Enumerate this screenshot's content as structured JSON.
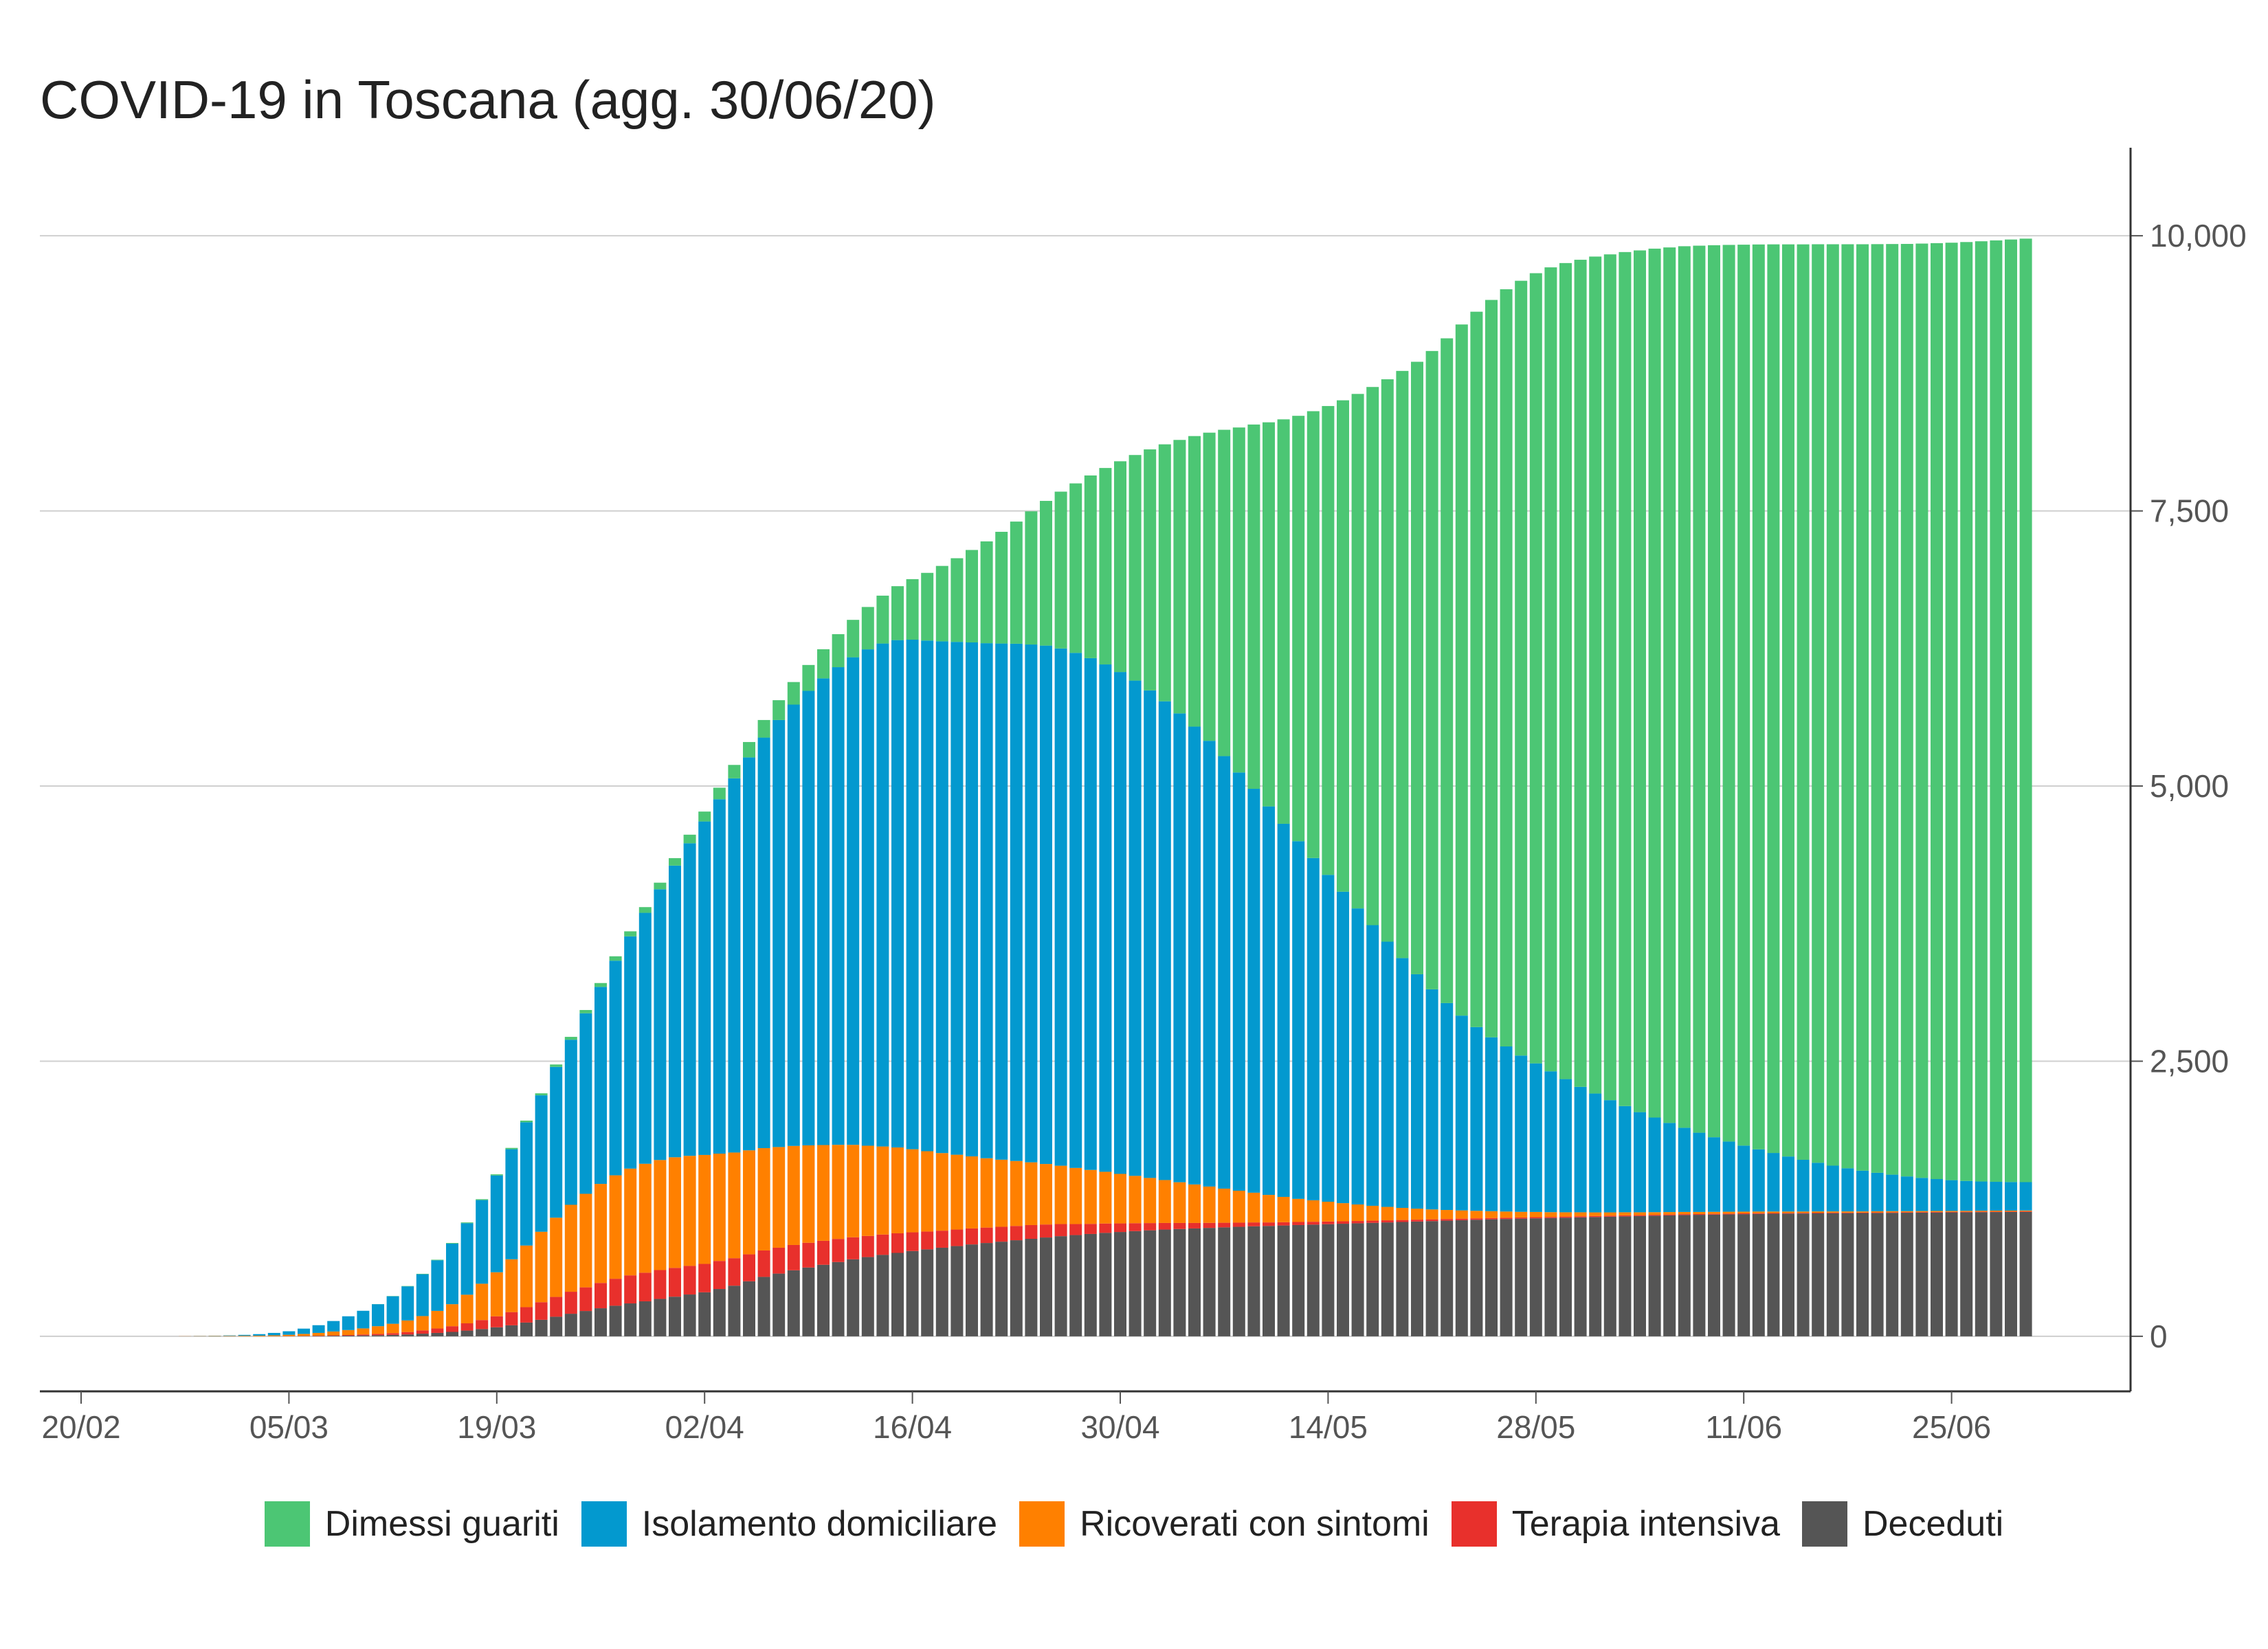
{
  "chart_data": {
    "type": "bar",
    "stacked": true,
    "title": "COVID-19 in Toscana (agg. 30/06/20)",
    "xlabel": "",
    "ylabel": "",
    "x_start": "2020-02-20",
    "x_end": "2020-06-30",
    "x_tick_labels": [
      "20/02",
      "05/03",
      "19/03",
      "02/04",
      "16/04",
      "30/04",
      "14/05",
      "28/05",
      "11/06",
      "25/06"
    ],
    "y_ticks": [
      0,
      2500,
      5000,
      7500,
      10000
    ],
    "y_tick_labels": [
      "0",
      "2,500",
      "5,000",
      "7,500",
      "10,000"
    ],
    "ylim": [
      -500,
      10800
    ],
    "y_axis_position": "right",
    "grid": "horizontal",
    "legend_position": "bottom",
    "series": [
      {
        "name": "Deceduti",
        "color": "#555555",
        "values": [
          0,
          0,
          0,
          0,
          0,
          0,
          0,
          0,
          0,
          0,
          0,
          0,
          0,
          1,
          1,
          2,
          3,
          5,
          6,
          8,
          10,
          13,
          17,
          24,
          31,
          40,
          52,
          66,
          82,
          100,
          125,
          150,
          178,
          205,
          230,
          255,
          278,
          299,
          318,
          340,
          360,
          380,
          400,
          430,
          460,
          500,
          540,
          570,
          600,
          625,
          650,
          675,
          700,
          720,
          740,
          758,
          775,
          790,
          805,
          820,
          835,
          848,
          860,
          873,
          886,
          898,
          910,
          920,
          930,
          940,
          948,
          956,
          963,
          970,
          975,
          980,
          985,
          990,
          995,
          1000,
          1003,
          1007,
          1011,
          1015,
          1019,
          1023,
          1027,
          1031,
          1035,
          1039,
          1043,
          1047,
          1051,
          1055,
          1059,
          1063,
          1066,
          1069,
          1072,
          1075,
          1078,
          1081,
          1084,
          1087,
          1090,
          1093,
          1096,
          1099,
          1102,
          1104,
          1106,
          1108,
          1110,
          1112,
          1114,
          1115,
          1116,
          1117,
          1118,
          1119,
          1120,
          1121,
          1122,
          1123,
          1124,
          1125,
          1126,
          1127,
          1128,
          1129,
          1130,
          1131
        ]
      },
      {
        "name": "Terapia intensiva",
        "color": "#e8302c",
        "values": [
          0,
          0,
          0,
          0,
          0,
          0,
          0,
          0,
          0,
          0,
          0,
          0,
          0,
          0,
          1,
          2,
          3,
          4,
          6,
          9,
          12,
          16,
          22,
          30,
          40,
          52,
          66,
          82,
          100,
          120,
          140,
          160,
          180,
          200,
          215,
          230,
          245,
          255,
          260,
          262,
          262,
          260,
          258,
          255,
          250,
          245,
          240,
          235,
          230,
          225,
          218,
          210,
          200,
          192,
          185,
          178,
          170,
          162,
          155,
          150,
          145,
          140,
          135,
          130,
          125,
          118,
          110,
          100,
          92,
          85,
          78,
          72,
          66,
          60,
          55,
          50,
          46,
          42,
          38,
          35,
          32,
          30,
          28,
          26,
          24,
          22,
          21,
          20,
          19,
          18,
          17,
          16,
          15,
          14,
          13,
          12,
          12,
          11,
          11,
          10,
          10,
          10,
          9,
          9,
          9,
          8,
          8,
          8,
          8,
          7,
          7,
          7,
          7,
          7,
          6,
          6,
          6,
          6,
          6,
          5,
          5,
          5,
          5,
          5,
          5,
          5,
          5,
          5,
          5,
          5,
          5,
          5
        ]
      },
      {
        "name": "Ricoverati con sintomi",
        "color": "#ff8000",
        "values": [
          0,
          0,
          0,
          0,
          0,
          0,
          0,
          1,
          2,
          3,
          4,
          5,
          6,
          8,
          12,
          18,
          25,
          35,
          45,
          55,
          70,
          85,
          105,
          130,
          160,
          200,
          260,
          330,
          400,
          480,
          560,
          640,
          720,
          790,
          850,
          900,
          940,
          970,
          990,
          1000,
          1005,
          1000,
          990,
          975,
          960,
          945,
          930,
          915,
          900,
          885,
          870,
          855,
          840,
          820,
          800,
          780,
          755,
          730,
          705,
          680,
          655,
          630,
          610,
          590,
          570,
          550,
          530,
          510,
          490,
          470,
          450,
          430,
          410,
          390,
          370,
          350,
          330,
          310,
          290,
          270,
          250,
          230,
          210,
          195,
          180,
          165,
          150,
          135,
          122,
          110,
          100,
          90,
          82,
          75,
          68,
          62,
          56,
          51,
          47,
          43,
          39,
          36,
          33,
          30,
          28,
          26,
          24,
          22,
          20,
          19,
          18,
          17,
          16,
          15,
          14,
          13,
          12,
          12,
          11,
          11,
          10,
          10,
          10,
          9,
          9,
          9,
          8,
          8,
          8,
          8,
          7,
          7
        ]
      },
      {
        "name": "Isolamento domiciliare",
        "color": "#0399cf",
        "values": [
          0,
          0,
          0,
          0,
          0,
          0,
          0,
          0,
          1,
          2,
          4,
          8,
          14,
          22,
          32,
          48,
          70,
          95,
          125,
          160,
          200,
          250,
          310,
          380,
          460,
          550,
          650,
          760,
          880,
          1000,
          1120,
          1240,
          1370,
          1500,
          1640,
          1790,
          1950,
          2110,
          2280,
          2460,
          2650,
          2840,
          3030,
          3220,
          3400,
          3570,
          3730,
          3880,
          4010,
          4130,
          4240,
          4340,
          4430,
          4510,
          4570,
          4610,
          4630,
          4640,
          4650,
          4660,
          4670,
          4680,
          4690,
          4700,
          4705,
          4710,
          4700,
          4680,
          4650,
          4610,
          4560,
          4500,
          4430,
          4350,
          4260,
          4160,
          4050,
          3930,
          3800,
          3670,
          3530,
          3390,
          3250,
          3110,
          2970,
          2830,
          2690,
          2550,
          2410,
          2270,
          2130,
          2000,
          1880,
          1770,
          1670,
          1580,
          1500,
          1420,
          1350,
          1280,
          1210,
          1140,
          1080,
          1020,
          965,
          910,
          860,
          810,
          765,
          720,
          678,
          638,
          600,
          565,
          532,
          500,
          470,
          442,
          416,
          392,
          370,
          350,
          332,
          316,
          302,
          290,
          280,
          272,
          266,
          262,
          260,
          258
        ]
      },
      {
        "name": "Dimessi guariti",
        "color": "#4cc674",
        "values": [
          0,
          0,
          0,
          0,
          0,
          0,
          0,
          0,
          0,
          0,
          0,
          0,
          0,
          0,
          0,
          0,
          0,
          0,
          0,
          0,
          1,
          2,
          3,
          4,
          5,
          6,
          7,
          8,
          10,
          12,
          15,
          18,
          22,
          26,
          30,
          35,
          40,
          46,
          52,
          60,
          68,
          78,
          90,
          105,
          122,
          140,
          160,
          180,
          205,
          235,
          265,
          300,
          340,
          385,
          435,
          490,
          550,
          615,
          685,
          760,
          840,
          925,
          1015,
          1110,
          1210,
          1315,
          1425,
          1540,
          1660,
          1785,
          1915,
          2050,
          2190,
          2335,
          2485,
          2640,
          2800,
          2965,
          3135,
          3310,
          3490,
          3675,
          3865,
          4060,
          4260,
          4465,
          4675,
          4890,
          5110,
          5335,
          5565,
          5800,
          6040,
          6280,
          6500,
          6700,
          6880,
          7040,
          7180,
          7305,
          7415,
          7515,
          7605,
          7685,
          7760,
          7830,
          7895,
          7955,
          8010,
          8060,
          8105,
          8147,
          8186,
          8222,
          8256,
          8288,
          8318,
          8346,
          8372,
          8396,
          8418,
          8438,
          8456,
          8473,
          8489,
          8504,
          8518,
          8531,
          8543,
          8554,
          8564,
          8573
        ]
      }
    ]
  },
  "legend": {
    "items": [
      {
        "label": "Dimessi guariti",
        "color": "#4cc674"
      },
      {
        "label": "Isolamento domiciliare",
        "color": "#0399cf"
      },
      {
        "label": "Ricoverati con sintomi",
        "color": "#ff8000"
      },
      {
        "label": "Terapia intensiva",
        "color": "#e8302c"
      },
      {
        "label": "Deceduti",
        "color": "#555555"
      }
    ]
  }
}
